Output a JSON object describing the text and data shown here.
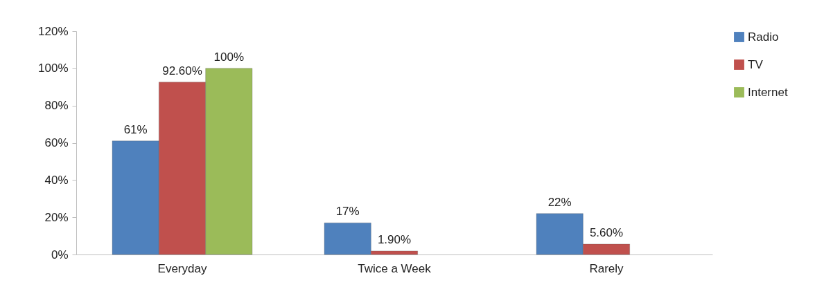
{
  "chart_data": {
    "type": "bar",
    "categories": [
      "Everyday",
      "Twice a Week",
      "Rarely"
    ],
    "series": [
      {
        "name": "Radio",
        "color": "#4f81bd",
        "values": [
          61,
          17,
          22
        ],
        "value_labels": [
          "61%",
          "17%",
          "22%"
        ]
      },
      {
        "name": "TV",
        "color": "#c0504d",
        "values": [
          92.6,
          1.9,
          5.6
        ],
        "value_labels": [
          "92.60%",
          "1.90%",
          "5.60%"
        ]
      },
      {
        "name": "Internet",
        "color": "#9bbb59",
        "values": [
          100,
          null,
          null
        ],
        "value_labels": [
          "100%",
          null,
          null
        ]
      }
    ],
    "ylim": [
      0,
      120
    ],
    "yticks": [
      {
        "value": 0,
        "label": "0%"
      },
      {
        "value": 20,
        "label": "20%"
      },
      {
        "value": 40,
        "label": "40%"
      },
      {
        "value": 60,
        "label": "60%"
      },
      {
        "value": 80,
        "label": "80%"
      },
      {
        "value": 100,
        "label": "100%"
      },
      {
        "value": 120,
        "label": "120%"
      }
    ],
    "grid": false,
    "legend": "right"
  }
}
